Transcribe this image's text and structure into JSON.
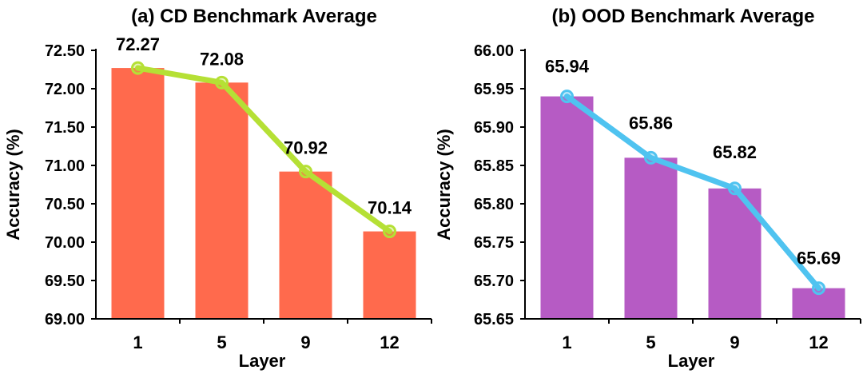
{
  "chart_data": [
    {
      "type": "bar",
      "panel_label": "(a)",
      "title": "CD Benchmark Average",
      "xlabel": "Layer",
      "ylabel": "Accuracy (%)",
      "categories": [
        "1",
        "5",
        "9",
        "12"
      ],
      "values": [
        72.27,
        72.08,
        70.92,
        70.14
      ],
      "value_labels": [
        "72.27",
        "72.08",
        "70.92",
        "70.14"
      ],
      "ylim": [
        69.0,
        72.5
      ],
      "yticks": [
        "69.00",
        "69.50",
        "70.00",
        "70.50",
        "71.00",
        "71.50",
        "72.00",
        "72.50"
      ],
      "bar_color": "#ff6a4d",
      "line_color": "#b5e035",
      "overlay_line": true,
      "grid": false
    },
    {
      "type": "bar",
      "panel_label": "(b)",
      "title": "OOD Benchmark Average",
      "xlabel": "Layer",
      "ylabel": "Accuracy (%)",
      "categories": [
        "1",
        "5",
        "9",
        "12"
      ],
      "values": [
        65.94,
        65.86,
        65.82,
        65.69
      ],
      "value_labels": [
        "65.94",
        "65.86",
        "65.82",
        "65.69"
      ],
      "ylim": [
        65.65,
        66.0
      ],
      "yticks": [
        "65.65",
        "65.70",
        "65.75",
        "65.80",
        "65.85",
        "65.90",
        "65.95",
        "66.00"
      ],
      "bar_color": "#b65bc4",
      "line_color": "#4fc3f0",
      "overlay_line": true,
      "grid": false
    }
  ]
}
